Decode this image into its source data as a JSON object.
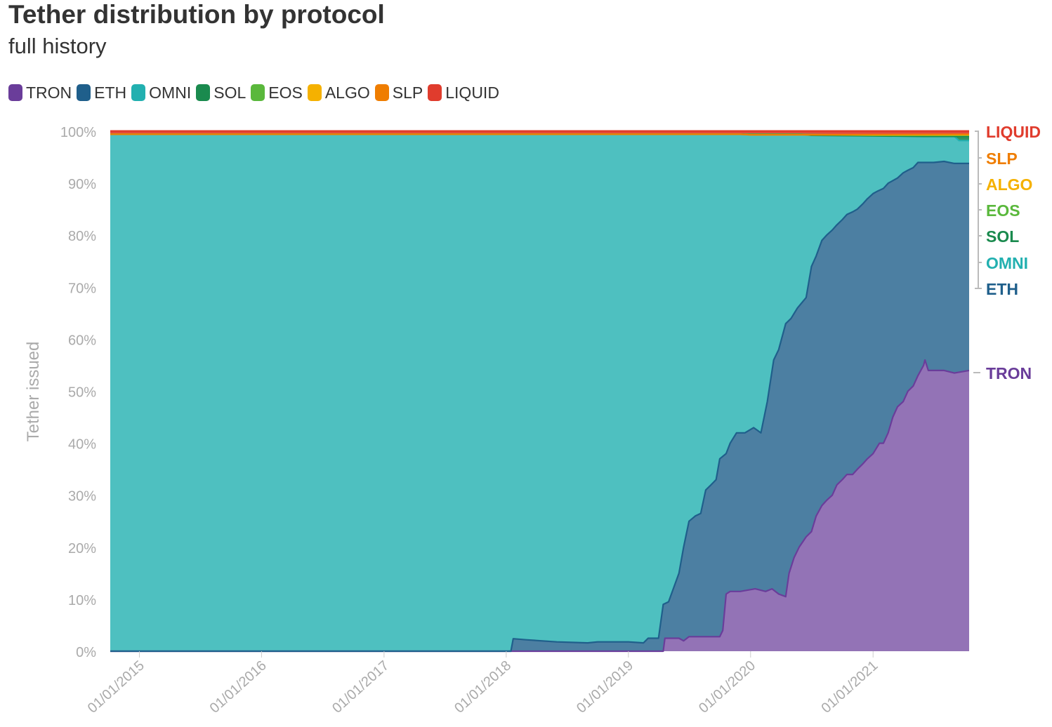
{
  "title": "Tether distribution by protocol",
  "subtitle": "full history",
  "legend": [
    {
      "name": "TRON",
      "color": "#6a3d9a"
    },
    {
      "name": "ETH",
      "color": "#1f5f8b"
    },
    {
      "name": "OMNI",
      "color": "#22b0b0"
    },
    {
      "name": "SOL",
      "color": "#1a8a4e"
    },
    {
      "name": "EOS",
      "color": "#5ab83c"
    },
    {
      "name": "ALGO",
      "color": "#f5b100"
    },
    {
      "name": "SLP",
      "color": "#ef7d00"
    },
    {
      "name": "LIQUID",
      "color": "#e03c2d"
    }
  ],
  "chart_data": {
    "type": "area",
    "stacked": true,
    "percent": true,
    "ylabel": "Tether issued",
    "ylim": [
      0,
      100
    ],
    "yticks": [
      "0%",
      "10%",
      "20%",
      "30%",
      "40%",
      "50%",
      "60%",
      "70%",
      "80%",
      "90%",
      "100%"
    ],
    "xticks": [
      "01/01/2015",
      "01/01/2016",
      "01/01/2017",
      "01/01/2018",
      "01/01/2019",
      "01/01/2020",
      "01/01/2021"
    ],
    "x_range": [
      "2014-10-06",
      "2021-10-15"
    ],
    "end_labels": [
      {
        "name": "LIQUID",
        "color": "#e03c2d"
      },
      {
        "name": "SLP",
        "color": "#ef7d00"
      },
      {
        "name": "ALGO",
        "color": "#f5b100"
      },
      {
        "name": "EOS",
        "color": "#5ab83c"
      },
      {
        "name": "SOL",
        "color": "#1a8a4e"
      },
      {
        "name": "OMNI",
        "color": "#22b0b0"
      },
      {
        "name": "ETH",
        "color": "#1f5f8b"
      },
      {
        "name": "TRON",
        "color": "#6a3d9a"
      }
    ],
    "series_bounds": [
      {
        "name": "TRON",
        "color": "#6a3d9a",
        "points": [
          [
            "2014-10-06",
            0
          ],
          [
            "2019-04-15",
            0
          ],
          [
            "2019-04-20",
            2.5
          ],
          [
            "2019-06-01",
            2.5
          ],
          [
            "2019-06-15",
            2.0
          ],
          [
            "2019-07-01",
            2.8
          ],
          [
            "2019-10-01",
            2.8
          ],
          [
            "2019-10-10",
            4
          ],
          [
            "2019-10-20",
            11
          ],
          [
            "2019-11-01",
            11.5
          ],
          [
            "2019-12-01",
            11.5
          ],
          [
            "2020-01-15",
            12
          ],
          [
            "2020-02-15",
            11.5
          ],
          [
            "2020-03-05",
            12
          ],
          [
            "2020-03-25",
            11
          ],
          [
            "2020-04-15",
            10.5
          ],
          [
            "2020-04-25",
            15
          ],
          [
            "2020-05-10",
            18
          ],
          [
            "2020-05-25",
            20
          ],
          [
            "2020-06-15",
            22
          ],
          [
            "2020-07-01",
            23
          ],
          [
            "2020-07-15",
            26
          ],
          [
            "2020-08-01",
            28
          ],
          [
            "2020-08-15",
            29
          ],
          [
            "2020-09-01",
            30
          ],
          [
            "2020-09-15",
            32
          ],
          [
            "2020-10-01",
            33
          ],
          [
            "2020-10-15",
            34
          ],
          [
            "2020-11-01",
            34
          ],
          [
            "2020-11-15",
            35
          ],
          [
            "2020-12-01",
            36
          ],
          [
            "2020-12-15",
            37
          ],
          [
            "2021-01-01",
            38
          ],
          [
            "2021-01-20",
            40
          ],
          [
            "2021-02-01",
            40
          ],
          [
            "2021-02-15",
            42
          ],
          [
            "2021-03-01",
            45
          ],
          [
            "2021-03-15",
            47
          ],
          [
            "2021-04-01",
            48
          ],
          [
            "2021-04-15",
            50
          ],
          [
            "2021-05-01",
            51
          ],
          [
            "2021-05-15",
            53
          ],
          [
            "2021-06-01",
            55
          ],
          [
            "2021-06-05",
            56
          ],
          [
            "2021-06-15",
            54
          ],
          [
            "2021-07-01",
            54
          ],
          [
            "2021-08-01",
            54
          ],
          [
            "2021-09-01",
            53.5
          ],
          [
            "2021-10-15",
            54
          ]
        ]
      },
      {
        "name": "ETH",
        "color": "#1f5f8b",
        "points": [
          [
            "2014-10-06",
            0
          ],
          [
            "2018-01-15",
            0
          ],
          [
            "2018-01-22",
            2.4
          ],
          [
            "2018-03-01",
            2.2
          ],
          [
            "2018-06-01",
            1.8
          ],
          [
            "2018-09-01",
            1.6
          ],
          [
            "2018-10-01",
            1.8
          ],
          [
            "2019-01-01",
            1.8
          ],
          [
            "2019-02-15",
            1.6
          ],
          [
            "2019-03-01",
            2.5
          ],
          [
            "2019-04-01",
            2.5
          ],
          [
            "2019-04-15",
            9
          ],
          [
            "2019-05-01",
            9.5
          ],
          [
            "2019-06-01",
            15
          ],
          [
            "2019-06-15",
            20
          ],
          [
            "2019-07-01",
            25
          ],
          [
            "2019-07-20",
            26
          ],
          [
            "2019-08-05",
            26.5
          ],
          [
            "2019-08-20",
            31
          ],
          [
            "2019-09-05",
            32
          ],
          [
            "2019-09-20",
            33
          ],
          [
            "2019-10-01",
            37
          ],
          [
            "2019-10-20",
            38
          ],
          [
            "2019-11-01",
            40
          ],
          [
            "2019-11-20",
            42
          ],
          [
            "2019-12-15",
            42
          ],
          [
            "2020-01-10",
            43
          ],
          [
            "2020-02-01",
            42
          ],
          [
            "2020-02-20",
            48
          ],
          [
            "2020-03-10",
            56
          ],
          [
            "2020-03-25",
            58
          ],
          [
            "2020-04-15",
            63
          ],
          [
            "2020-05-01",
            64
          ],
          [
            "2020-05-20",
            66
          ],
          [
            "2020-06-15",
            68
          ],
          [
            "2020-07-01",
            74
          ],
          [
            "2020-07-15",
            76
          ],
          [
            "2020-08-01",
            79
          ],
          [
            "2020-08-15",
            80
          ],
          [
            "2020-09-01",
            81
          ],
          [
            "2020-09-15",
            82
          ],
          [
            "2020-10-01",
            83
          ],
          [
            "2020-10-15",
            84
          ],
          [
            "2020-11-01",
            84.5
          ],
          [
            "2020-11-15",
            85
          ],
          [
            "2020-12-01",
            86
          ],
          [
            "2020-12-15",
            87
          ],
          [
            "2021-01-01",
            88
          ],
          [
            "2021-01-15",
            88.5
          ],
          [
            "2021-02-01",
            89
          ],
          [
            "2021-02-15",
            90
          ],
          [
            "2021-03-01",
            90.5
          ],
          [
            "2021-03-15",
            91
          ],
          [
            "2021-04-01",
            92
          ],
          [
            "2021-04-15",
            92.5
          ],
          [
            "2021-05-01",
            93
          ],
          [
            "2021-05-15",
            94
          ],
          [
            "2021-06-01",
            94
          ],
          [
            "2021-07-01",
            94
          ],
          [
            "2021-08-01",
            94.2
          ],
          [
            "2021-09-01",
            93.8
          ],
          [
            "2021-10-15",
            93.8
          ]
        ]
      },
      {
        "name": "OMNI",
        "color": "#22b0b0",
        "points": [
          [
            "2014-10-06",
            99.4
          ],
          [
            "2019-12-01",
            99.4
          ],
          [
            "2020-06-01",
            99.3
          ],
          [
            "2021-01-01",
            99.1
          ],
          [
            "2021-09-01",
            99.0
          ],
          [
            "2021-09-15",
            98.2
          ],
          [
            "2021-10-15",
            98.2
          ]
        ]
      },
      {
        "name": "SOL",
        "color": "#1a8a4e",
        "points": [
          [
            "2014-10-06",
            99.4
          ],
          [
            "2020-06-01",
            99.4
          ],
          [
            "2020-07-01",
            99.2
          ],
          [
            "2021-01-01",
            99.1
          ],
          [
            "2021-06-01",
            99.0
          ],
          [
            "2021-10-15",
            99.0
          ]
        ]
      },
      {
        "name": "EOS",
        "color": "#5ab83c",
        "points": [
          [
            "2014-10-06",
            99.4
          ],
          [
            "2020-06-01",
            99.4
          ],
          [
            "2021-01-01",
            99.2
          ],
          [
            "2021-10-15",
            99.2
          ]
        ]
      },
      {
        "name": "ALGO",
        "color": "#f5b100",
        "points": [
          [
            "2014-10-06",
            99.4
          ],
          [
            "2019-12-01",
            99.4
          ],
          [
            "2020-01-01",
            99.3
          ],
          [
            "2021-10-15",
            99.3
          ]
        ]
      },
      {
        "name": "SLP",
        "color": "#ef7d00",
        "points": [
          [
            "2014-10-06",
            99.4
          ],
          [
            "2019-12-01",
            99.4
          ],
          [
            "2020-01-01",
            99.3
          ],
          [
            "2021-10-15",
            99.4
          ]
        ]
      },
      {
        "name": "LIQUID",
        "color": "#e03c2d",
        "points": [
          [
            "2014-10-06",
            100
          ],
          [
            "2021-10-15",
            100
          ]
        ]
      }
    ]
  }
}
